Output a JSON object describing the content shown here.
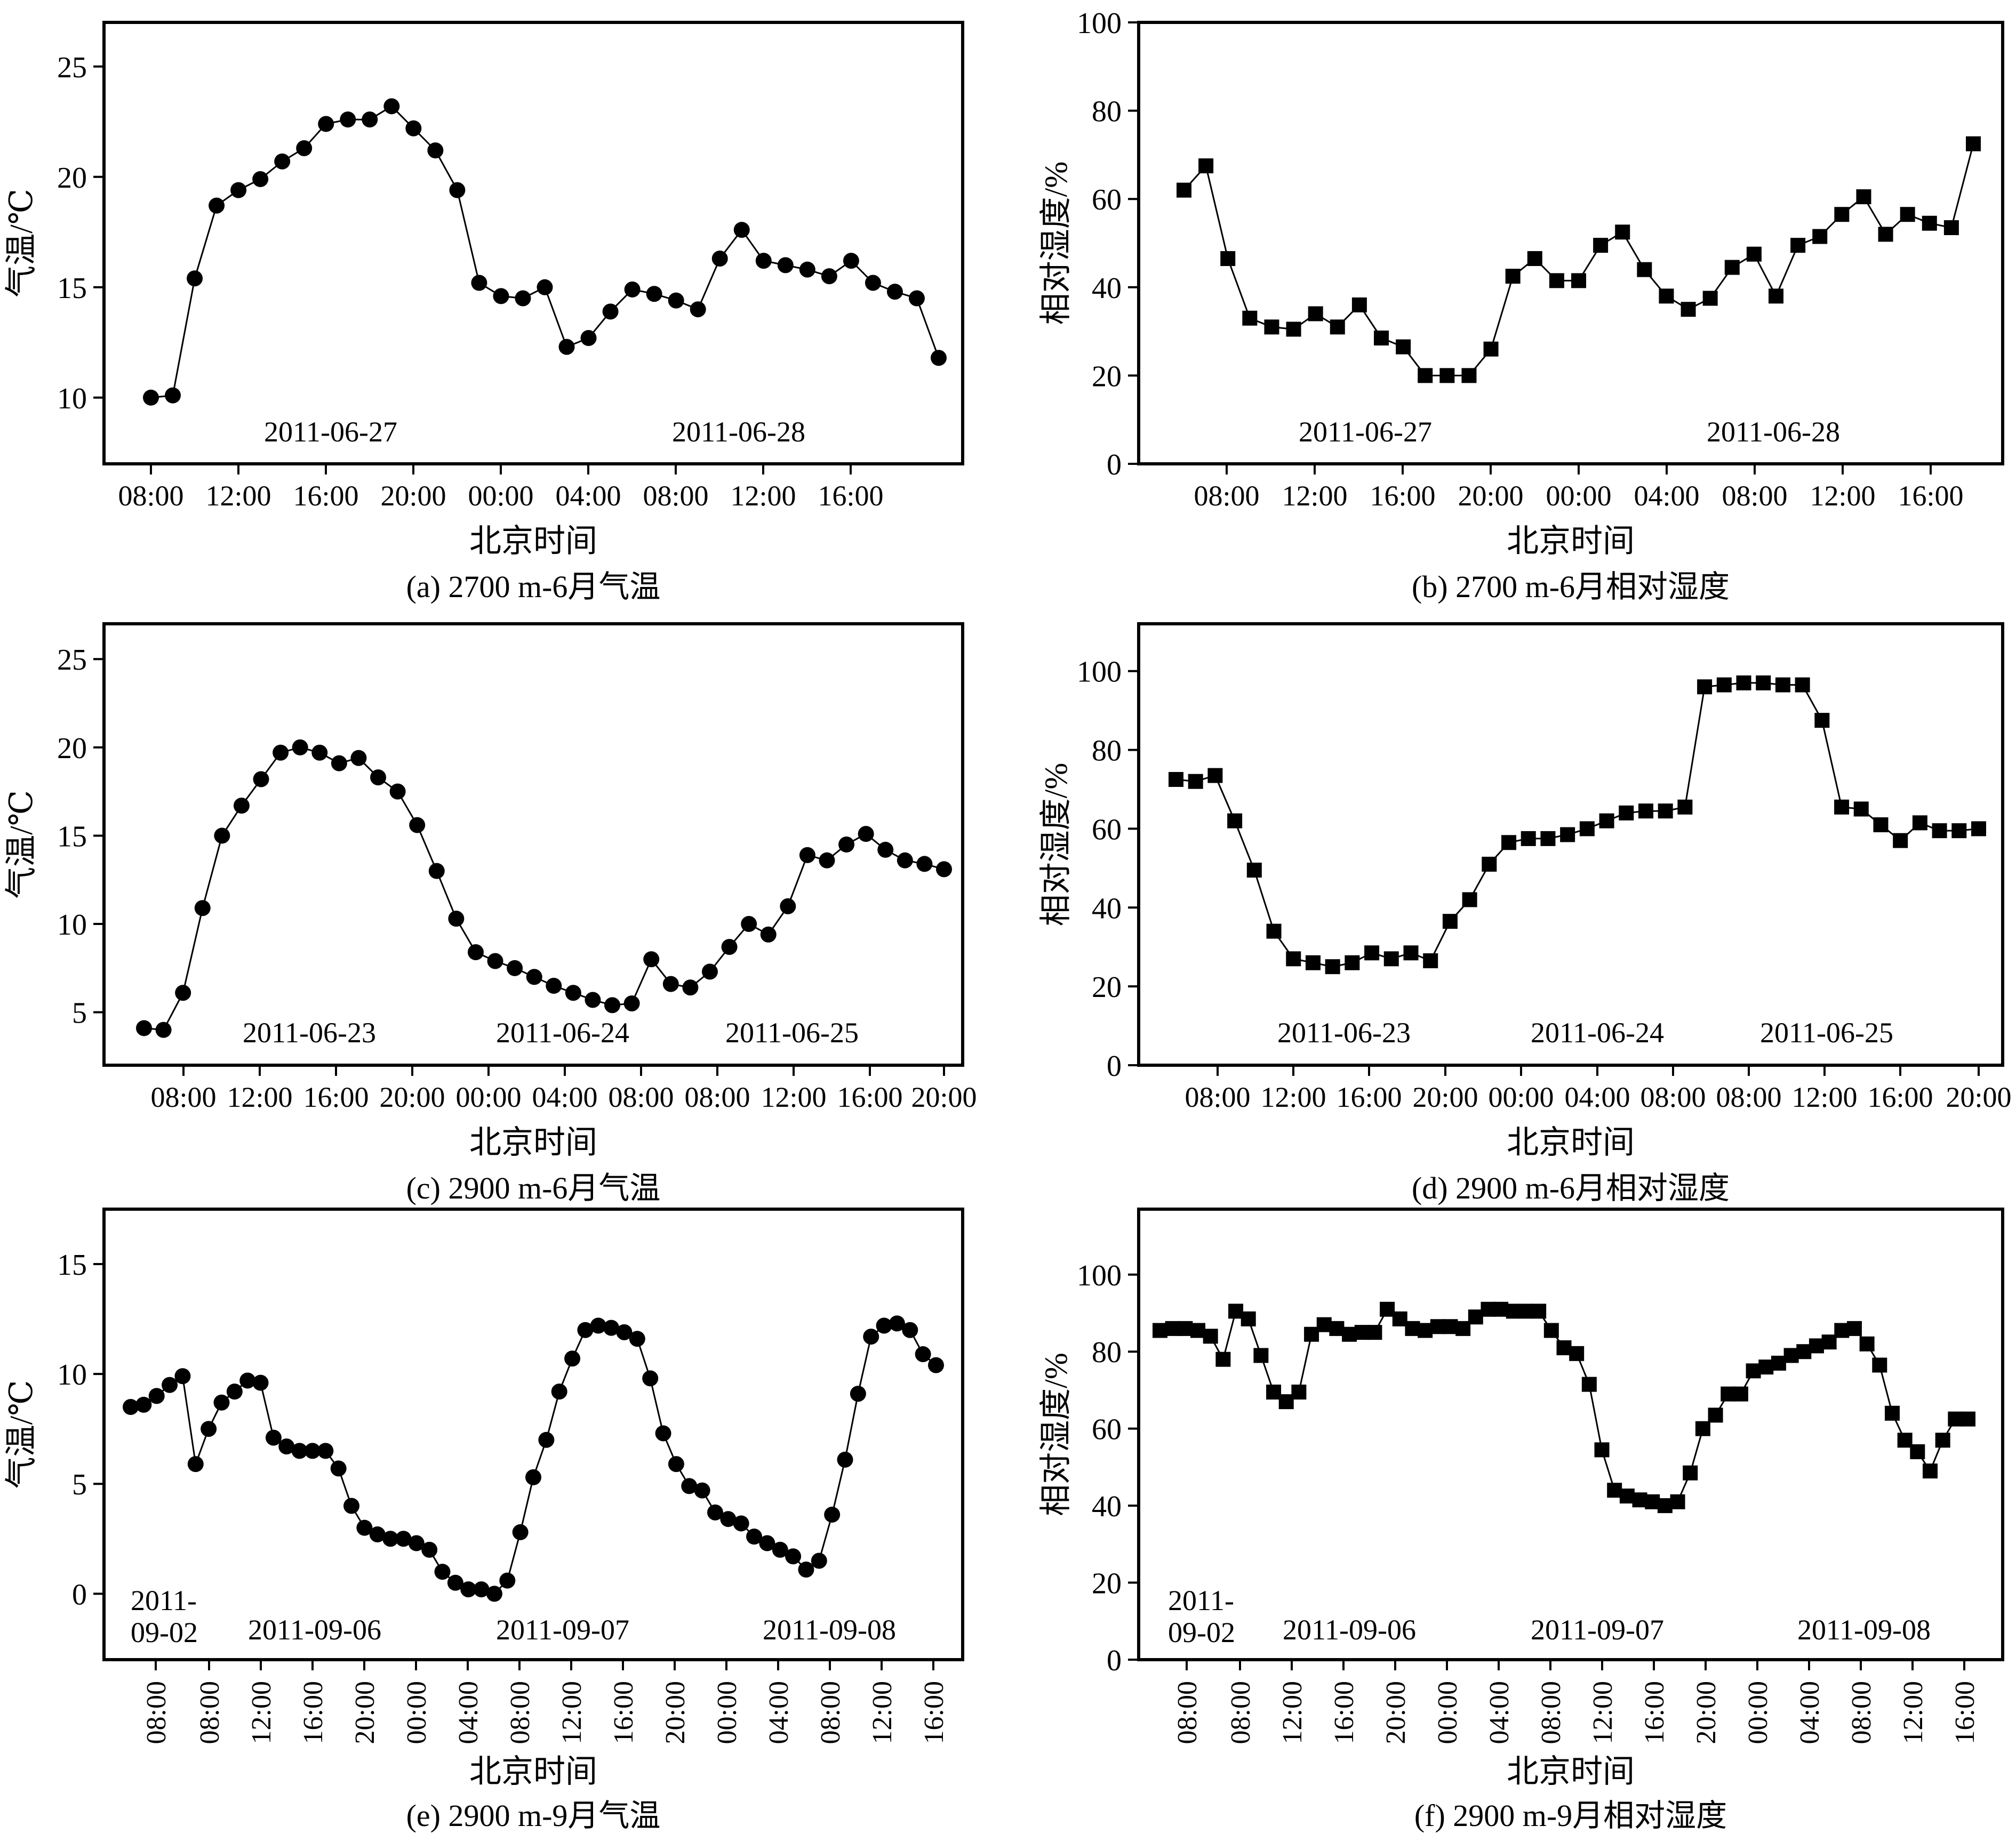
{
  "chart_data": [
    {
      "id": "a",
      "type": "line",
      "caption": "(a) 2700 m-6月气温",
      "xlabel": "北京时间",
      "ylabel": "气温/℃",
      "ylim": [
        7,
        27
      ],
      "yticks": [
        10,
        15,
        20,
        25
      ],
      "marker": "circle",
      "xtick_labels": [
        "08:00",
        "12:00",
        "16:00",
        "20:00",
        "00:00",
        "04:00",
        "08:00",
        "12:00",
        "16:00"
      ],
      "date_labels": [
        "2011-06-27",
        "2011-06-28"
      ],
      "values": [
        10.0,
        10.1,
        15.4,
        18.7,
        19.4,
        19.9,
        20.7,
        21.3,
        22.4,
        22.6,
        22.6,
        23.2,
        22.2,
        21.2,
        19.4,
        15.2,
        14.6,
        14.5,
        15.0,
        12.3,
        12.7,
        13.9,
        14.9,
        14.7,
        14.4,
        14.0,
        16.3,
        17.6,
        16.2,
        16.0,
        15.8,
        15.5,
        16.2,
        15.2,
        14.8,
        14.5,
        11.8
      ]
    },
    {
      "id": "b",
      "type": "line",
      "caption": "(b) 2700 m-6月相对湿度",
      "xlabel": "北京时间",
      "ylabel": "相对湿度/%",
      "ylim": [
        0,
        100
      ],
      "yticks": [
        0,
        20,
        40,
        60,
        80,
        100
      ],
      "marker": "square",
      "xtick_labels": [
        "08:00",
        "12:00",
        "16:00",
        "20:00",
        "00:00",
        "04:00",
        "08:00",
        "12:00",
        "16:00"
      ],
      "date_labels": [
        "2011-06-27",
        "2011-06-28"
      ],
      "values": [
        62,
        67.5,
        46.5,
        33,
        31,
        30.5,
        34,
        31,
        36,
        28.5,
        26.5,
        20,
        20,
        20,
        26,
        42.5,
        46.5,
        41.5,
        41.5,
        49.5,
        52.5,
        44,
        38,
        35,
        37.5,
        44.5,
        47.5,
        38,
        49.5,
        51.5,
        56.5,
        60.5,
        52,
        56.5,
        54.5,
        53.5,
        72.5
      ]
    },
    {
      "id": "c",
      "type": "line",
      "caption": "(c) 2900 m-6月气温",
      "xlabel": "北京时间",
      "ylabel": "气温/℃",
      "ylim": [
        2,
        27
      ],
      "yticks": [
        5,
        10,
        15,
        20,
        25
      ],
      "marker": "circle",
      "xtick_labels": [
        "08:00",
        "12:00",
        "16:00",
        "20:00",
        "00:00",
        "04:00",
        "08:00",
        "08:00",
        "12:00",
        "16:00",
        "20:00"
      ],
      "date_labels": [
        "2011-06-23",
        "2011-06-24",
        "2011-06-25"
      ],
      "values": [
        4.1,
        4.0,
        6.1,
        10.9,
        15.0,
        16.7,
        18.2,
        19.7,
        20.0,
        19.7,
        19.1,
        19.4,
        18.3,
        17.5,
        15.6,
        13.0,
        10.3,
        8.4,
        7.9,
        7.5,
        7.0,
        6.5,
        6.1,
        5.7,
        5.4,
        5.5,
        8.0,
        6.6,
        6.4,
        7.3,
        8.7,
        10.0,
        9.4,
        11.0,
        13.9,
        13.6,
        14.5,
        15.1,
        14.2,
        13.6,
        13.4,
        13.1
      ]
    },
    {
      "id": "d",
      "type": "line",
      "caption": "(d) 2900 m-6月相对湿度",
      "xlabel": "北京时间",
      "ylabel": "相对湿度/%",
      "ylim": [
        0,
        112
      ],
      "yticks": [
        0,
        20,
        40,
        60,
        80,
        100
      ],
      "marker": "square",
      "xtick_labels": [
        "08:00",
        "12:00",
        "16:00",
        "20:00",
        "00:00",
        "04:00",
        "08:00",
        "08:00",
        "12:00",
        "16:00",
        "20:00"
      ],
      "date_labels": [
        "2011-06-23",
        "2011-06-24",
        "2011-06-25"
      ],
      "values": [
        72.5,
        72,
        73.5,
        62,
        49.5,
        34,
        27,
        26,
        25,
        26,
        28.5,
        27,
        28.5,
        26.5,
        36.5,
        42,
        51,
        56.5,
        57.5,
        57.5,
        58.5,
        60,
        62,
        64,
        64.5,
        64.5,
        65.5,
        96,
        96.5,
        97,
        97,
        96.5,
        96.5,
        87.5,
        65.5,
        65,
        61,
        57,
        61.5,
        59.5,
        59.5,
        60
      ]
    },
    {
      "id": "e",
      "type": "line",
      "caption": "(e) 2900 m-9月气温",
      "xlabel": "北京时间",
      "ylabel": "气温/℃",
      "ylim": [
        -3,
        17.5
      ],
      "yticks": [
        0,
        5,
        10,
        15
      ],
      "marker": "circle",
      "xtick_labels": [
        "08:00",
        "08:00",
        "12:00",
        "16:00",
        "20:00",
        "00:00",
        "04:00",
        "08:00",
        "12:00",
        "16:00",
        "20:00",
        "00:00",
        "04:00",
        "08:00",
        "12:00",
        "16:00"
      ],
      "date_labels": [
        "2011-\n09-02",
        "2011-09-06",
        "2011-09-07",
        "2011-09-08"
      ],
      "values": [
        8.5,
        8.6,
        9.0,
        9.5,
        9.9,
        5.9,
        7.5,
        8.7,
        9.2,
        9.7,
        9.6,
        7.1,
        6.7,
        6.5,
        6.5,
        6.5,
        5.7,
        4.0,
        3.0,
        2.7,
        2.5,
        2.5,
        2.3,
        2.0,
        1.0,
        0.5,
        0.2,
        0.2,
        0.0,
        0.6,
        2.8,
        5.3,
        7.0,
        9.2,
        10.7,
        12.0,
        12.2,
        12.1,
        11.9,
        11.6,
        9.8,
        7.3,
        5.9,
        4.9,
        4.7,
        3.7,
        3.4,
        3.2,
        2.6,
        2.3,
        2.0,
        1.7,
        1.1,
        1.5,
        3.6,
        6.1,
        9.1,
        11.7,
        12.2,
        12.3,
        12.0,
        10.9,
        10.4
      ]
    },
    {
      "id": "f",
      "type": "line",
      "caption": "(f) 2900 m-9月相对湿度",
      "xlabel": "北京时间",
      "ylabel": "相对湿度/%",
      "ylim": [
        0,
        117
      ],
      "yticks": [
        0,
        20,
        40,
        60,
        80,
        100
      ],
      "marker": "square",
      "xtick_labels": [
        "08:00",
        "08:00",
        "12:00",
        "16:00",
        "20:00",
        "00:00",
        "04:00",
        "08:00",
        "12:00",
        "16:00",
        "20:00",
        "00:00",
        "04:00",
        "08:00",
        "12:00",
        "16:00"
      ],
      "date_labels": [
        "2011-\n09-02",
        "2011-09-06",
        "2011-09-07",
        "2011-09-08"
      ],
      "values": [
        85.5,
        86,
        86,
        85.5,
        84,
        78,
        90.5,
        88.5,
        79,
        69.5,
        67,
        69.5,
        84.5,
        87,
        86,
        84.5,
        85,
        85,
        91,
        88.5,
        86,
        85.5,
        86.5,
        86.5,
        86,
        89,
        91,
        91,
        90.5,
        90.5,
        90.5,
        85.5,
        81,
        79.5,
        71.5,
        54.5,
        44,
        42.5,
        41.5,
        41,
        40,
        41,
        48.5,
        60,
        63.5,
        69,
        69,
        75,
        76,
        77,
        79,
        80,
        81.5,
        82.5,
        85.5,
        86,
        82,
        76.5,
        64,
        57,
        54,
        49,
        57,
        62.5,
        62.5
      ]
    }
  ]
}
